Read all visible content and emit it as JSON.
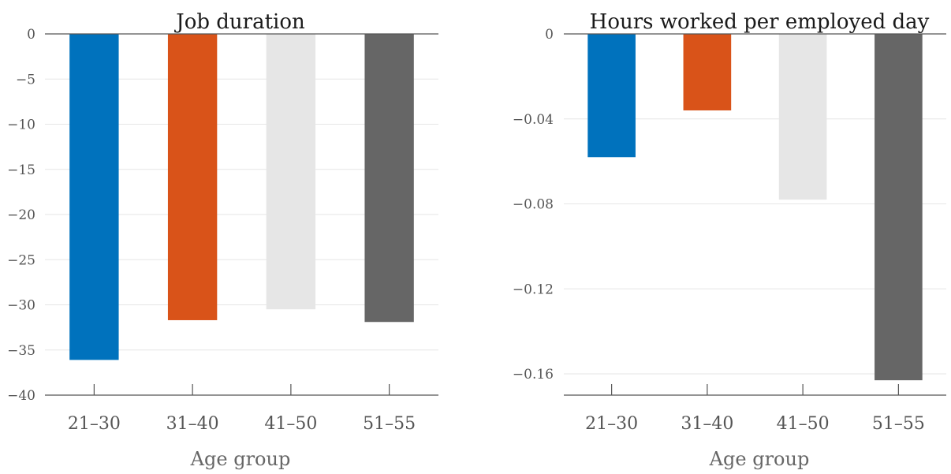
{
  "chart_data": [
    {
      "type": "bar",
      "title": "Job duration",
      "xlabel": "Age group",
      "ylabel": "",
      "categories": [
        "21–30",
        "31–40",
        "41–50",
        "51–55"
      ],
      "values": [
        -36.1,
        -31.7,
        -30.5,
        -31.9
      ],
      "colors": [
        "#0072bd",
        "#d95319",
        "#e6e6e6",
        "#666666"
      ],
      "ylim": [
        -40,
        0
      ],
      "yticks": [
        0,
        -5,
        -10,
        -15,
        -20,
        -25,
        -30,
        -35,
        -40
      ],
      "ytick_labels": [
        "0",
        "−5",
        "−10",
        "−15",
        "−20",
        "−25",
        "−30",
        "−35",
        "−40"
      ],
      "grid": true
    },
    {
      "type": "bar",
      "title": "Hours worked per employed day",
      "xlabel": "Age group",
      "ylabel": "",
      "categories": [
        "21–30",
        "31–40",
        "41–50",
        "51–55"
      ],
      "values": [
        -0.058,
        -0.036,
        -0.078,
        -0.163
      ],
      "colors": [
        "#0072bd",
        "#d95319",
        "#e6e6e6",
        "#666666"
      ],
      "ylim": [
        -0.17,
        0
      ],
      "yticks": [
        0,
        -0.04,
        -0.08,
        -0.12,
        -0.16
      ],
      "ytick_labels": [
        "0",
        "−0.04",
        "−0.08",
        "−0.12",
        "−0.16"
      ],
      "grid": true
    }
  ]
}
